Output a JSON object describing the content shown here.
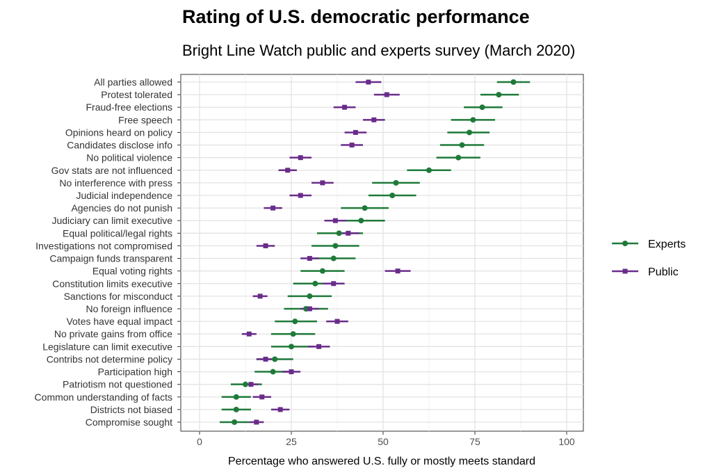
{
  "chart_data": {
    "type": "dot-errorbar",
    "title": "Rating of U.S. democratic performance",
    "subtitle": "Bright Line Watch public and experts survey (March 2020)",
    "xlabel": "Percentage who answered U.S. fully or mostly meets standard",
    "xlim": [
      -3,
      104
    ],
    "xticks": [
      0,
      25,
      50,
      75,
      100
    ],
    "grid": true,
    "legend_position": "right",
    "colors": {
      "Experts": "#1f7a3a",
      "Public": "#6a2c8a"
    },
    "categories": [
      "All parties allowed",
      "Protest tolerated",
      "Fraud-free elections",
      "Free speech",
      "Opinions heard on policy",
      "Candidates disclose info",
      "No political violence",
      "Gov stats are not influenced",
      "No interference with press",
      "Judicial independence",
      "Agencies do not punish",
      "Judiciary can limit executive",
      "Equal political/legal rights",
      "Investigations not compromised",
      "Campaign funds transparent",
      "Equal voting rights",
      "Constitution limits executive",
      "Sanctions for misconduct",
      "No foreign influence",
      "Votes have equal impact",
      "No private gains from office",
      "Legislature can limit executive",
      "Contribs not determine policy",
      "Participation high",
      "Patriotism not questioned",
      "Common understanding of facts",
      "Districts not biased",
      "Compromise sought"
    ],
    "series": [
      {
        "name": "Experts",
        "values": [
          85.5,
          81.5,
          77,
          74.5,
          73.5,
          71.5,
          70.5,
          62.5,
          53.5,
          52.5,
          45,
          44,
          38,
          37,
          36.5,
          33.5,
          31.5,
          30,
          29,
          26,
          25.5,
          25,
          20.5,
          20,
          12.5,
          10,
          10,
          9.5
        ],
        "lower": [
          81,
          76.5,
          72,
          68.5,
          67.5,
          65.5,
          64.5,
          56.5,
          47,
          46,
          38.5,
          37,
          32,
          30.5,
          30,
          27.5,
          25.5,
          24,
          23,
          20.5,
          19.5,
          19.5,
          15.5,
          15,
          8.5,
          6,
          6,
          5.5
        ],
        "upper": [
          90,
          87,
          82.5,
          80.5,
          79,
          77.5,
          76.5,
          68.5,
          60,
          59,
          51.5,
          50.5,
          44.5,
          43.5,
          42.5,
          39.5,
          37.5,
          36,
          35,
          32,
          31.5,
          31,
          25.5,
          25,
          17,
          14,
          14,
          13.5
        ]
      },
      {
        "name": "Public",
        "values": [
          46,
          51,
          39.5,
          47.5,
          42.5,
          41.5,
          27.5,
          24,
          33.5,
          27.5,
          20,
          37,
          40.5,
          18,
          30,
          54,
          36.5,
          16.5,
          30,
          37.5,
          13.5,
          32.5,
          18,
          25,
          14,
          17,
          22,
          15.5
        ],
        "lower": [
          42.5,
          47.5,
          36.5,
          44.5,
          39.5,
          38.5,
          24.5,
          21.5,
          30.5,
          24.5,
          17.5,
          34,
          37.5,
          15.5,
          27.5,
          50.5,
          33.5,
          14.5,
          27.5,
          34.5,
          11.5,
          29.5,
          15.5,
          22.5,
          12,
          14.5,
          19.5,
          13.5
        ],
        "upper": [
          49.5,
          54.5,
          42.5,
          50.5,
          45.5,
          44.5,
          30.5,
          26.5,
          36.5,
          30.5,
          22.5,
          40,
          43.5,
          20.5,
          32.5,
          57.5,
          39.5,
          18.5,
          32.5,
          40.5,
          15.5,
          35.5,
          20.5,
          27.5,
          16,
          19.5,
          24.5,
          17.5
        ]
      }
    ]
  }
}
